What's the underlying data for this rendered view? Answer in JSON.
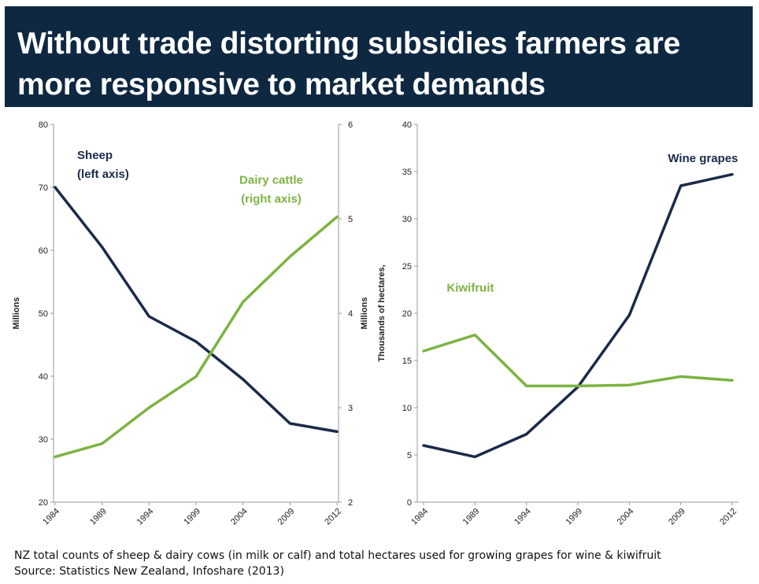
{
  "title": "Without trade distorting subsidies farmers are more responsive to market demands",
  "colors": {
    "navy": "#1b2a4a",
    "green": "#7cb342",
    "title_bg": "#0e2841"
  },
  "footer": {
    "line1": "NZ total counts of sheep & dairy cows (in milk or calf) and total hectares used for growing grapes for wine & kiwifruit",
    "line2": "Source: Statistics New Zealand, Infoshare (2013)"
  },
  "chart_data": [
    {
      "type": "line",
      "x": [
        "1984",
        "1989",
        "1994",
        "1999",
        "2004",
        "2009",
        "2012"
      ],
      "ylabel": "Millions",
      "y2label": "Millions",
      "ylim": [
        20,
        80
      ],
      "yticks": [
        20,
        30,
        40,
        50,
        60,
        70,
        80
      ],
      "y2lim": [
        2,
        6
      ],
      "y2ticks": [
        2,
        3,
        4,
        5,
        6
      ],
      "grid": false,
      "series": [
        {
          "name": "Sheep",
          "axis": "left",
          "color": "#1b2a4a",
          "values": [
            70.0,
            60.5,
            49.5,
            45.5,
            39.5,
            32.5,
            31.2
          ]
        },
        {
          "name": "Dairy cattle",
          "axis": "right",
          "color": "#7cb342",
          "values": [
            2.48,
            2.62,
            3.0,
            3.33,
            4.12,
            4.6,
            5.02
          ]
        }
      ],
      "annotations": [
        {
          "lines": [
            "Sheep",
            "(left axis)"
          ],
          "color": "#1b2a4a",
          "anchor": "start",
          "tx": 0.47,
          "ty": 74.5
        },
        {
          "lines": [
            "Dairy cattle",
            "(right axis)"
          ],
          "color": "#7cb342",
          "anchor": "middle",
          "tx": 4.6,
          "ty": 5.37
        }
      ]
    },
    {
      "type": "line",
      "x": [
        "1984",
        "1989",
        "1994",
        "1999",
        "2004",
        "2009",
        "2012"
      ],
      "ylabel": "Thousands of hectares,",
      "ylim": [
        0,
        40
      ],
      "yticks": [
        0,
        5,
        10,
        15,
        20,
        25,
        30,
        35,
        40
      ],
      "grid": false,
      "series": [
        {
          "name": "Wine grapes",
          "color": "#1b2a4a",
          "values": [
            6.0,
            4.8,
            7.2,
            12.2,
            19.8,
            33.5,
            34.7
          ]
        },
        {
          "name": "Kiwifruit",
          "color": "#7cb342",
          "values": [
            16.0,
            17.7,
            12.3,
            12.3,
            12.4,
            13.3,
            12.9
          ]
        }
      ],
      "annotations": [
        {
          "lines": [
            "Wine grapes"
          ],
          "color": "#1b2a4a",
          "anchor": "start",
          "tx": 4.75,
          "ty": 36.0
        },
        {
          "lines": [
            "Kiwifruit"
          ],
          "color": "#7cb342",
          "anchor": "start",
          "tx": 0.45,
          "ty": 22.3
        }
      ]
    }
  ]
}
